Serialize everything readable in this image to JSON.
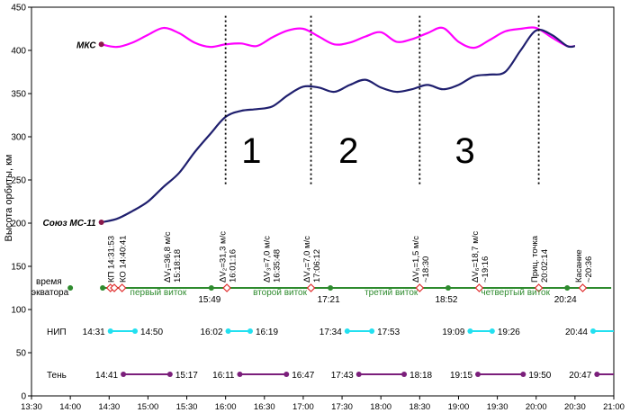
{
  "chart_data": {
    "type": "line",
    "xlabel": "",
    "ylabel": "Высота орбиты, км",
    "xlim": [
      "13:30",
      "21:00"
    ],
    "ylim": [
      0,
      450
    ],
    "grid": false,
    "x_ticks": [
      "13:30",
      "14:00",
      "14:30",
      "15:00",
      "15:30",
      "16:00",
      "16:30",
      "17:00",
      "17:30",
      "18:00",
      "18:30",
      "19:00",
      "19:30",
      "20:00",
      "20:30",
      "21:00"
    ],
    "y_ticks": [
      0,
      50,
      100,
      150,
      200,
      250,
      300,
      350,
      400,
      450
    ],
    "series": [
      {
        "name": "МКС",
        "color": "#ff00ff",
        "x": [
          "14:24",
          "14:36",
          "14:48",
          "15:00",
          "15:12",
          "15:24",
          "15:36",
          "15:48",
          "16:00",
          "16:12",
          "16:24",
          "16:36",
          "16:48",
          "17:00",
          "17:12",
          "17:24",
          "17:36",
          "17:48",
          "18:00",
          "18:12",
          "18:24",
          "18:36",
          "18:48",
          "19:00",
          "19:12",
          "19:24",
          "19:36",
          "19:48",
          "20:00",
          "20:12",
          "20:24",
          "20:30"
        ],
        "y": [
          407,
          404,
          409,
          418,
          426,
          420,
          409,
          404,
          407,
          408,
          405,
          415,
          423,
          425,
          416,
          407,
          409,
          416,
          421,
          410,
          413,
          420,
          426,
          410,
          403,
          412,
          422,
          425,
          426,
          415,
          405,
          405
        ]
      },
      {
        "name": "Союз МС-11",
        "color": "#1f1f6e",
        "x": [
          "14:24",
          "14:36",
          "14:48",
          "15:00",
          "15:12",
          "15:24",
          "15:36",
          "15:48",
          "16:00",
          "16:12",
          "16:24",
          "16:36",
          "16:48",
          "17:00",
          "17:12",
          "17:24",
          "17:36",
          "17:48",
          "18:00",
          "18:12",
          "18:24",
          "18:36",
          "18:48",
          "19:00",
          "19:12",
          "19:24",
          "19:36",
          "19:48",
          "20:00",
          "20:12",
          "20:24",
          "20:30"
        ],
        "y": [
          201,
          205,
          214,
          225,
          242,
          258,
          282,
          303,
          323,
          330,
          332,
          335,
          348,
          358,
          357,
          352,
          360,
          366,
          357,
          352,
          355,
          360,
          355,
          360,
          370,
          372,
          375,
          400,
          423,
          418,
          405,
          405
        ]
      }
    ],
    "series_labels": [
      "МКС",
      "Союз МС-11"
    ],
    "vertical_markers": [
      "16:00",
      "17:06",
      "18:30",
      "20:02"
    ],
    "region_labels": [
      "1",
      "2",
      "3"
    ],
    "row_labels": [
      "время экватора",
      "НИП",
      "Тень"
    ],
    "equator_row": {
      "y": 125,
      "color": "#2e8b2e",
      "line_x": [
        "14:25",
        "20:58"
      ],
      "green_points": [
        "14:00",
        "14:25",
        "15:49",
        "17:21",
        "18:52",
        "20:24"
      ],
      "diamond_points": [
        "14:31",
        "14:34",
        "14:40",
        "16:01",
        "17:06",
        "18:30",
        "19:16",
        "20:02",
        "20:36"
      ],
      "times": [
        "15:49",
        "17:21",
        "18:52",
        "20:24"
      ],
      "orbits": [
        "первый виток",
        "второй виток",
        "третий виток",
        "четвертый виток"
      ]
    },
    "nip_row": {
      "y": 75,
      "color": "#22e0f0",
      "segments": [
        [
          "14:31",
          "14:50"
        ],
        [
          "16:02",
          "16:19"
        ],
        [
          "17:34",
          "17:53"
        ],
        [
          "19:09",
          "19:26"
        ],
        [
          "20:44",
          "21:00"
        ]
      ],
      "labels": [
        "14:31",
        "14:50",
        "16:02",
        "16:19",
        "17:34",
        "17:53",
        "19:09",
        "19:26",
        "20:44"
      ]
    },
    "shadow_row": {
      "y": 25,
      "color": "#7b1f7b",
      "segments": [
        [
          "14:41",
          "15:17"
        ],
        [
          "16:11",
          "16:47"
        ],
        [
          "17:43",
          "18:18"
        ],
        [
          "19:15",
          "19:50"
        ],
        [
          "20:47",
          "21:00"
        ]
      ],
      "labels": [
        "14:41",
        "15:17",
        "16:11",
        "16:47",
        "17:43",
        "18:18",
        "19:15",
        "19:50",
        "20:47"
      ]
    },
    "event_annotations": [
      {
        "time": "14:31",
        "lines": [
          "КП 14:31:53"
        ]
      },
      {
        "time": "14:40",
        "lines": [
          "КО 14:40:41"
        ]
      },
      {
        "time": "15:18",
        "lines": [
          "ΔV₁=36,8 м/с",
          "15:18:18"
        ]
      },
      {
        "time": "16:01",
        "lines": [
          "ΔV₂=31,3 м/с",
          "16:01:16"
        ]
      },
      {
        "time": "16:35",
        "lines": [
          "ΔV₃=7,0 м/с",
          "16:35:48"
        ]
      },
      {
        "time": "17:06",
        "lines": [
          "ΔV₄=7,0 м/с",
          "17:06:12"
        ]
      },
      {
        "time": "18:30",
        "lines": [
          "ΔV₅=1,5 м/с",
          "~18:30"
        ]
      },
      {
        "time": "19:16",
        "lines": [
          "ΔV₆=18,7 м/с",
          "~19:16"
        ]
      },
      {
        "time": "20:02",
        "lines": [
          "Приц. точка",
          "20:02:14"
        ]
      },
      {
        "time": "20:36",
        "lines": [
          "Касание",
          "~20:36"
        ]
      }
    ]
  }
}
